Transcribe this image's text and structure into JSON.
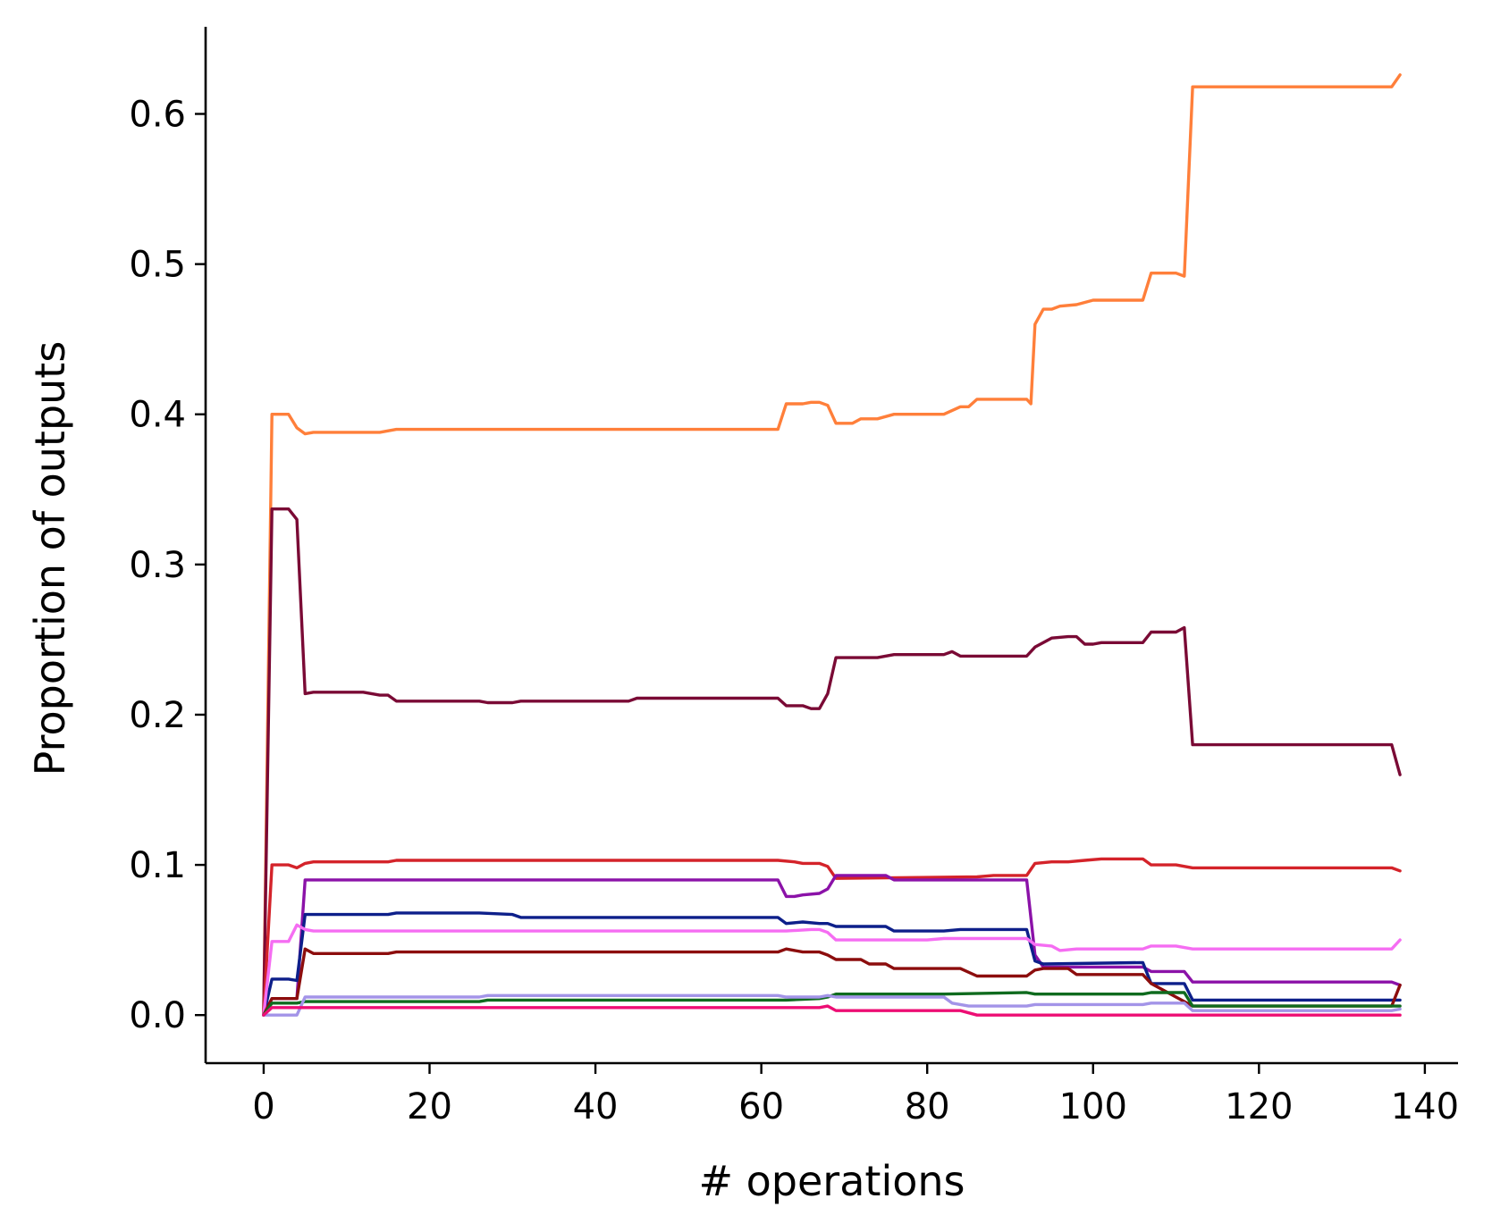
{
  "chart_data": {
    "type": "line",
    "title": "",
    "xlabel": "# operations",
    "ylabel": "Proportion of outputs",
    "xlim": [
      -7,
      144
    ],
    "ylim": [
      -0.032,
      0.658
    ],
    "xticks": [
      0,
      20,
      40,
      60,
      80,
      100,
      120,
      140
    ],
    "yticks": [
      0.0,
      0.1,
      0.2,
      0.3,
      0.4,
      0.5,
      0.6
    ],
    "xtick_labels": [
      "0",
      "20",
      "40",
      "60",
      "80",
      "100",
      "120",
      "140"
    ],
    "ytick_labels": [
      "0.0",
      "0.1",
      "0.2",
      "0.3",
      "0.4",
      "0.5",
      "0.6"
    ],
    "grid": false,
    "legend": "none",
    "series": [
      {
        "color": "#ff7f3a",
        "points": [
          [
            0,
            0
          ],
          [
            1,
            0.4
          ],
          [
            3,
            0.4
          ],
          [
            4,
            0.391
          ],
          [
            5,
            0.387
          ],
          [
            6,
            0.388
          ],
          [
            14,
            0.388
          ],
          [
            16,
            0.39
          ],
          [
            30,
            0.39
          ],
          [
            46,
            0.39
          ],
          [
            62,
            0.39
          ],
          [
            63,
            0.407
          ],
          [
            65,
            0.407
          ],
          [
            66,
            0.408
          ],
          [
            67,
            0.408
          ],
          [
            68,
            0.406
          ],
          [
            69,
            0.394
          ],
          [
            71,
            0.394
          ],
          [
            72,
            0.397
          ],
          [
            74,
            0.397
          ],
          [
            76,
            0.4
          ],
          [
            82,
            0.4
          ],
          [
            84,
            0.405
          ],
          [
            85,
            0.405
          ],
          [
            86,
            0.41
          ],
          [
            92,
            0.41
          ],
          [
            92.5,
            0.407
          ],
          [
            93,
            0.46
          ],
          [
            94,
            0.47
          ],
          [
            95,
            0.47
          ],
          [
            96,
            0.472
          ],
          [
            98,
            0.473
          ],
          [
            100,
            0.476
          ],
          [
            106,
            0.476
          ],
          [
            107,
            0.494
          ],
          [
            110,
            0.494
          ],
          [
            111,
            0.492
          ],
          [
            112,
            0.618
          ],
          [
            136,
            0.618
          ],
          [
            137,
            0.626
          ]
        ]
      },
      {
        "color": "#7a0a35",
        "points": [
          [
            0,
            0
          ],
          [
            1,
            0.337
          ],
          [
            3,
            0.337
          ],
          [
            4,
            0.33
          ],
          [
            5,
            0.214
          ],
          [
            6,
            0.215
          ],
          [
            12,
            0.215
          ],
          [
            14,
            0.213
          ],
          [
            15,
            0.213
          ],
          [
            16,
            0.209
          ],
          [
            26,
            0.209
          ],
          [
            27,
            0.208
          ],
          [
            30,
            0.208
          ],
          [
            31,
            0.209
          ],
          [
            44,
            0.209
          ],
          [
            45,
            0.211
          ],
          [
            62,
            0.211
          ],
          [
            63,
            0.206
          ],
          [
            65,
            0.206
          ],
          [
            66,
            0.204
          ],
          [
            67,
            0.204
          ],
          [
            68,
            0.214
          ],
          [
            69,
            0.238
          ],
          [
            74,
            0.238
          ],
          [
            76,
            0.24
          ],
          [
            82,
            0.24
          ],
          [
            83,
            0.242
          ],
          [
            84,
            0.239
          ],
          [
            92,
            0.239
          ],
          [
            93,
            0.245
          ],
          [
            95,
            0.251
          ],
          [
            97,
            0.252
          ],
          [
            98,
            0.252
          ],
          [
            99,
            0.247
          ],
          [
            100,
            0.247
          ],
          [
            101,
            0.248
          ],
          [
            106,
            0.248
          ],
          [
            107,
            0.255
          ],
          [
            110,
            0.255
          ],
          [
            111,
            0.258
          ],
          [
            112,
            0.18
          ],
          [
            136,
            0.18
          ],
          [
            137,
            0.16
          ]
        ]
      },
      {
        "color": "#d4232a",
        "points": [
          [
            0,
            0
          ],
          [
            1,
            0.1
          ],
          [
            3,
            0.1
          ],
          [
            4,
            0.098
          ],
          [
            5,
            0.101
          ],
          [
            6,
            0.102
          ],
          [
            15,
            0.102
          ],
          [
            16,
            0.103
          ],
          [
            62,
            0.103
          ],
          [
            64,
            0.102
          ],
          [
            65,
            0.101
          ],
          [
            67,
            0.101
          ],
          [
            68,
            0.099
          ],
          [
            69,
            0.091
          ],
          [
            86,
            0.092
          ],
          [
            88,
            0.093
          ],
          [
            92,
            0.093
          ],
          [
            93,
            0.101
          ],
          [
            95,
            0.102
          ],
          [
            97,
            0.102
          ],
          [
            99,
            0.103
          ],
          [
            101,
            0.104
          ],
          [
            106,
            0.104
          ],
          [
            107,
            0.1
          ],
          [
            110,
            0.1
          ],
          [
            112,
            0.098
          ],
          [
            136,
            0.098
          ],
          [
            137,
            0.096
          ]
        ]
      },
      {
        "color": "#8b12a8",
        "points": [
          [
            0,
            0
          ],
          [
            1,
            0.011
          ],
          [
            4,
            0.011
          ],
          [
            5,
            0.09
          ],
          [
            6,
            0.09
          ],
          [
            30,
            0.09
          ],
          [
            62,
            0.09
          ],
          [
            63,
            0.079
          ],
          [
            64,
            0.079
          ],
          [
            65,
            0.08
          ],
          [
            67,
            0.081
          ],
          [
            68,
            0.084
          ],
          [
            69,
            0.093
          ],
          [
            75,
            0.093
          ],
          [
            76,
            0.09
          ],
          [
            90,
            0.09
          ],
          [
            92,
            0.09
          ],
          [
            93,
            0.04
          ],
          [
            94,
            0.032
          ],
          [
            106,
            0.032
          ],
          [
            107,
            0.029
          ],
          [
            111,
            0.029
          ],
          [
            112,
            0.022
          ],
          [
            136,
            0.022
          ],
          [
            137,
            0.02
          ]
        ]
      },
      {
        "color": "#0d1f8a",
        "points": [
          [
            0,
            0
          ],
          [
            1,
            0.024
          ],
          [
            3,
            0.024
          ],
          [
            4,
            0.023
          ],
          [
            5,
            0.067
          ],
          [
            6,
            0.067
          ],
          [
            15,
            0.067
          ],
          [
            16,
            0.068
          ],
          [
            26,
            0.068
          ],
          [
            30,
            0.067
          ],
          [
            31,
            0.065
          ],
          [
            45,
            0.065
          ],
          [
            62,
            0.065
          ],
          [
            63,
            0.061
          ],
          [
            65,
            0.062
          ],
          [
            67,
            0.061
          ],
          [
            68,
            0.061
          ],
          [
            69,
            0.059
          ],
          [
            75,
            0.059
          ],
          [
            76,
            0.056
          ],
          [
            82,
            0.056
          ],
          [
            84,
            0.057
          ],
          [
            86,
            0.057
          ],
          [
            92,
            0.057
          ],
          [
            93,
            0.036
          ],
          [
            94,
            0.034
          ],
          [
            106,
            0.035
          ],
          [
            107,
            0.021
          ],
          [
            111,
            0.021
          ],
          [
            112,
            0.01
          ],
          [
            137,
            0.01
          ]
        ]
      },
      {
        "color": "#f56df2",
        "points": [
          [
            0,
            0
          ],
          [
            1,
            0.049
          ],
          [
            3,
            0.049
          ],
          [
            4,
            0.06
          ],
          [
            5,
            0.057
          ],
          [
            6,
            0.056
          ],
          [
            62,
            0.056
          ],
          [
            63,
            0.056
          ],
          [
            66,
            0.057
          ],
          [
            67,
            0.057
          ],
          [
            68,
            0.055
          ],
          [
            69,
            0.05
          ],
          [
            76,
            0.05
          ],
          [
            80,
            0.05
          ],
          [
            82,
            0.051
          ],
          [
            92,
            0.051
          ],
          [
            93,
            0.047
          ],
          [
            95,
            0.046
          ],
          [
            96,
            0.043
          ],
          [
            98,
            0.044
          ],
          [
            106,
            0.044
          ],
          [
            107,
            0.046
          ],
          [
            110,
            0.046
          ],
          [
            111,
            0.045
          ],
          [
            112,
            0.044
          ],
          [
            136,
            0.044
          ],
          [
            137,
            0.05
          ]
        ]
      },
      {
        "color": "#8c0d0d",
        "points": [
          [
            0,
            0
          ],
          [
            1,
            0.011
          ],
          [
            3,
            0.011
          ],
          [
            4,
            0.011
          ],
          [
            5,
            0.044
          ],
          [
            6,
            0.041
          ],
          [
            15,
            0.041
          ],
          [
            16,
            0.042
          ],
          [
            62,
            0.042
          ],
          [
            63,
            0.044
          ],
          [
            65,
            0.042
          ],
          [
            67,
            0.042
          ],
          [
            68,
            0.04
          ],
          [
            69,
            0.037
          ],
          [
            72,
            0.037
          ],
          [
            73,
            0.034
          ],
          [
            75,
            0.034
          ],
          [
            76,
            0.031
          ],
          [
            84,
            0.031
          ],
          [
            86,
            0.026
          ],
          [
            92,
            0.026
          ],
          [
            93,
            0.03
          ],
          [
            94,
            0.031
          ],
          [
            97,
            0.031
          ],
          [
            98,
            0.027
          ],
          [
            106,
            0.027
          ],
          [
            107,
            0.021
          ],
          [
            112,
            0.006
          ],
          [
            136,
            0.006
          ],
          [
            137,
            0.02
          ]
        ]
      },
      {
        "color": "#0f6b1e",
        "points": [
          [
            0,
            0
          ],
          [
            1,
            0.008
          ],
          [
            4,
            0.008
          ],
          [
            5,
            0.009
          ],
          [
            26,
            0.009
          ],
          [
            27,
            0.01
          ],
          [
            62,
            0.01
          ],
          [
            63,
            0.01
          ],
          [
            67,
            0.011
          ],
          [
            68,
            0.012
          ],
          [
            69,
            0.014
          ],
          [
            82,
            0.014
          ],
          [
            92,
            0.015
          ],
          [
            93,
            0.014
          ],
          [
            106,
            0.014
          ],
          [
            107,
            0.015
          ],
          [
            111,
            0.015
          ],
          [
            112,
            0.006
          ],
          [
            137,
            0.006
          ]
        ]
      },
      {
        "color": "#a394e8",
        "points": [
          [
            0,
            0
          ],
          [
            1,
            0
          ],
          [
            4,
            0
          ],
          [
            5,
            0.012
          ],
          [
            6,
            0.012
          ],
          [
            26,
            0.012
          ],
          [
            27,
            0.013
          ],
          [
            62,
            0.013
          ],
          [
            63,
            0.012
          ],
          [
            67,
            0.012
          ],
          [
            68,
            0.013
          ],
          [
            69,
            0.012
          ],
          [
            82,
            0.012
          ],
          [
            83,
            0.008
          ],
          [
            85,
            0.006
          ],
          [
            92,
            0.006
          ],
          [
            93,
            0.007
          ],
          [
            106,
            0.007
          ],
          [
            107,
            0.008
          ],
          [
            111,
            0.008
          ],
          [
            112,
            0.003
          ],
          [
            136,
            0.003
          ],
          [
            137,
            0.004
          ]
        ]
      },
      {
        "color": "#ed0e74",
        "points": [
          [
            0,
            0
          ],
          [
            1,
            0.005
          ],
          [
            4,
            0.005
          ],
          [
            5,
            0.005
          ],
          [
            67,
            0.005
          ],
          [
            68,
            0.006
          ],
          [
            69,
            0.003
          ],
          [
            82,
            0.003
          ],
          [
            84,
            0.003
          ],
          [
            86,
            0
          ],
          [
            137,
            0
          ]
        ]
      }
    ]
  }
}
